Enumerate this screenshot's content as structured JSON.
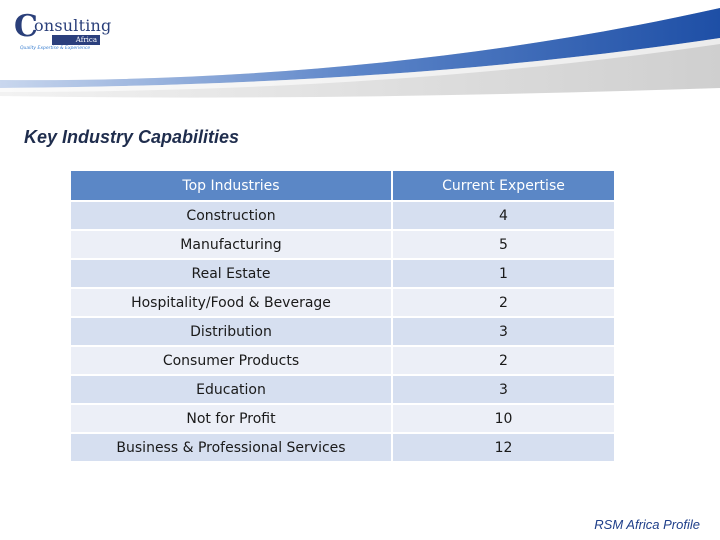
{
  "logo": {
    "word": "onsulting",
    "region": "Africa",
    "tagline": "Quality Expertise & Experience"
  },
  "page": {
    "title": "Key Industry Capabilities"
  },
  "table": {
    "headers": [
      "Top Industries",
      "Current Expertise"
    ],
    "rows": [
      [
        "Construction",
        "4"
      ],
      [
        "Manufacturing",
        "5"
      ],
      [
        "Real Estate",
        "1"
      ],
      [
        "Hospitality/Food & Beverage",
        "2"
      ],
      [
        "Distribution",
        "3"
      ],
      [
        "Consumer Products",
        "2"
      ],
      [
        "Education",
        "3"
      ],
      [
        "Not for Profit",
        "10"
      ],
      [
        "Business & Professional Services",
        "12"
      ]
    ]
  },
  "footer": {
    "text": "RSM Africa Profile"
  },
  "colors": {
    "header_blue": "#5b87c6",
    "row_dark": "#d6dff0",
    "row_light": "#eceff7",
    "swoosh_blue": "#2f5fb0"
  }
}
